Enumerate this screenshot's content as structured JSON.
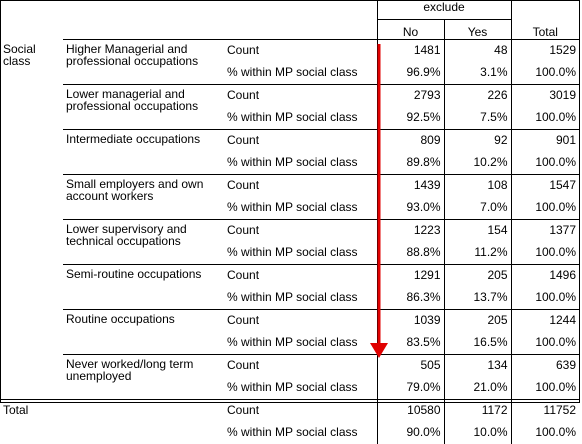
{
  "header": {
    "exclude_label": "exclude",
    "col_no": "No",
    "col_yes": "Yes",
    "col_total": "Total"
  },
  "row_group_label": "Social class",
  "stat_labels": {
    "count": "Count",
    "pct": "% within MP social class"
  },
  "rows": [
    {
      "category": "Higher Managerial and professional occupations",
      "count": [
        "1481",
        "48",
        "1529"
      ],
      "pct": [
        "96.9%",
        "3.1%",
        "100.0%"
      ]
    },
    {
      "category": "Lower managerial and professional occupations",
      "count": [
        "2793",
        "226",
        "3019"
      ],
      "pct": [
        "92.5%",
        "7.5%",
        "100.0%"
      ]
    },
    {
      "category": "Intermediate occupations",
      "count": [
        "809",
        "92",
        "901"
      ],
      "pct": [
        "89.8%",
        "10.2%",
        "100.0%"
      ]
    },
    {
      "category": "Small employers and own account workers",
      "count": [
        "1439",
        "108",
        "1547"
      ],
      "pct": [
        "93.0%",
        "7.0%",
        "100.0%"
      ]
    },
    {
      "category": "Lower supervisory and technical occupations",
      "count": [
        "1223",
        "154",
        "1377"
      ],
      "pct": [
        "88.8%",
        "11.2%",
        "100.0%"
      ]
    },
    {
      "category": "Semi-routine occupations",
      "count": [
        "1291",
        "205",
        "1496"
      ],
      "pct": [
        "86.3%",
        "13.7%",
        "100.0%"
      ]
    },
    {
      "category": "Routine occupations",
      "count": [
        "1039",
        "205",
        "1244"
      ],
      "pct": [
        "83.5%",
        "16.5%",
        "100.0%"
      ]
    },
    {
      "category": "Never worked/long term unemployed",
      "count": [
        "505",
        "134",
        "639"
      ],
      "pct": [
        "79.0%",
        "21.0%",
        "100.0%"
      ]
    }
  ],
  "total_row": {
    "label": "Total",
    "count": [
      "10580",
      "1172",
      "11752"
    ],
    "pct": [
      "90.0%",
      "10.0%",
      "100.0%"
    ]
  },
  "annotation": {
    "arrow_color": "#e00000"
  }
}
